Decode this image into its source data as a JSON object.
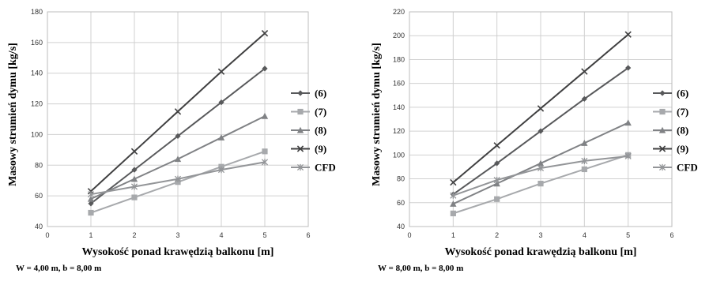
{
  "chart_data": [
    {
      "type": "line",
      "caption": "W = 4,00 m, b =  8,00 m",
      "xlabel": "Wysokość ponad krawędzią balkonu [m]",
      "ylabel": "Masowy strumień dymu [kg/s]",
      "xlim": [
        0,
        6
      ],
      "ylim": [
        40,
        180
      ],
      "xticks": [
        0,
        1,
        2,
        3,
        4,
        5,
        6
      ],
      "yticks": [
        40,
        60,
        80,
        100,
        120,
        140,
        160,
        180
      ],
      "grid": true,
      "legend": "right",
      "x": [
        1,
        2,
        3,
        4,
        5
      ],
      "series": [
        {
          "name": "(6)",
          "color": "#58595b",
          "marker": "diamond",
          "values": [
            55,
            77,
            99,
            121,
            143
          ]
        },
        {
          "name": "(7)",
          "color": "#a7a9ac",
          "marker": "square",
          "values": [
            49,
            59,
            69,
            79,
            89
          ]
        },
        {
          "name": "(8)",
          "color": "#808285",
          "marker": "triangle",
          "values": [
            58,
            71,
            84,
            98,
            112
          ]
        },
        {
          "name": "(9)",
          "color": "#404041",
          "marker": "x",
          "values": [
            63,
            89,
            115,
            141,
            166
          ]
        },
        {
          "name": "CFD",
          "color": "#939598",
          "marker": "star",
          "values": [
            61,
            66,
            71,
            77,
            82
          ]
        }
      ]
    },
    {
      "type": "line",
      "caption": "W = 8,00 m, b = 8,00 m",
      "xlabel": "Wysokość ponad krawędzią balkonu [m]",
      "ylabel": "Masowy strumień dymu [kg/s]",
      "xlim": [
        0,
        6
      ],
      "ylim": [
        40,
        220
      ],
      "xticks": [
        0,
        1,
        2,
        3,
        4,
        5,
        6
      ],
      "yticks": [
        40,
        60,
        80,
        100,
        120,
        140,
        160,
        180,
        200,
        220
      ],
      "grid": true,
      "legend": "right",
      "x": [
        1,
        2,
        3,
        4,
        5
      ],
      "series": [
        {
          "name": "(6)",
          "color": "#58595b",
          "marker": "diamond",
          "values": [
            67,
            93,
            120,
            147,
            173
          ]
        },
        {
          "name": "(7)",
          "color": "#a7a9ac",
          "marker": "square",
          "values": [
            51,
            63,
            76,
            88,
            100
          ]
        },
        {
          "name": "(8)",
          "color": "#808285",
          "marker": "triangle",
          "values": [
            59,
            76,
            93,
            110,
            127
          ]
        },
        {
          "name": "(9)",
          "color": "#404041",
          "marker": "x",
          "values": [
            77,
            108,
            139,
            170,
            201
          ]
        },
        {
          "name": "CFD",
          "color": "#939598",
          "marker": "star",
          "values": [
            66,
            79,
            89,
            95,
            99
          ]
        }
      ]
    }
  ]
}
